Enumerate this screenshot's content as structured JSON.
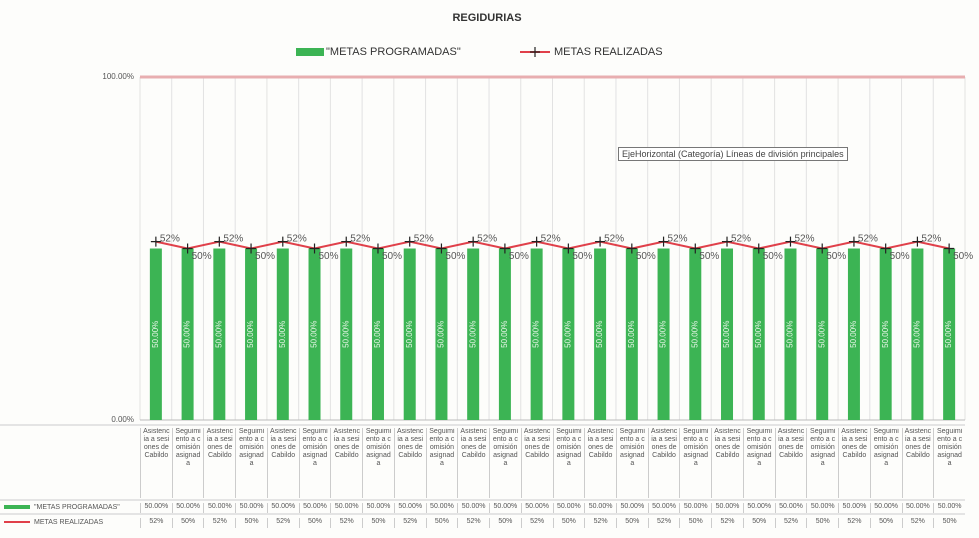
{
  "chart_data": {
    "type": "bar_line",
    "title": "REGIDURIAS",
    "annotation": "EjeHorizontal (Categoría) Líneas de división principales",
    "categories": [
      "Asistencia a sesiones de Cabildo",
      "Seguimiento a comisión asignada",
      "Asistencia a sesiones de Cabildo",
      "Seguimiento a comisión asignada",
      "Asistencia a sesiones de Cabildo",
      "Seguimiento a comisión asignada",
      "Asistencia a sesiones de Cabildo",
      "Seguimiento a comisión asignada",
      "Asistencia a sesiones de Cabildo",
      "Seguimiento a comisión asignada",
      "Asistencia a sesiones de Cabildo",
      "Seguimiento a comisión asignada",
      "Asistencia a sesiones de Cabildo",
      "Seguimiento a comisión asignada",
      "Asistencia a sesiones de Cabildo",
      "Seguimiento a comisión asignada",
      "Asistencia a sesiones de Cabildo",
      "Seguimiento a comisión asignada",
      "Asistencia a sesiones de Cabildo",
      "Seguimiento a comisión asignada",
      "Asistencia a sesiones de Cabildo",
      "Seguimiento a comisión asignada",
      "Asistencia a sesiones de Cabildo",
      "Seguimiento a comisión asignada",
      "Asistencia a sesiones de Cabildo",
      "Seguimiento a comisión asignada"
    ],
    "series": [
      {
        "name": "\"METAS PROGRAMADAS\"",
        "kind": "bar",
        "color": "#3cb454",
        "values": [
          50,
          50,
          50,
          50,
          50,
          50,
          50,
          50,
          50,
          50,
          50,
          50,
          50,
          50,
          50,
          50,
          50,
          50,
          50,
          50,
          50,
          50,
          50,
          50,
          50,
          50
        ],
        "value_labels": [
          "50.00%",
          "50.00%",
          "50.00%",
          "50.00%",
          "50.00%",
          "50.00%",
          "50.00%",
          "50.00%",
          "50.00%",
          "50.00%",
          "50.00%",
          "50.00%",
          "50.00%",
          "50.00%",
          "50.00%",
          "50.00%",
          "50.00%",
          "50.00%",
          "50.00%",
          "50.00%",
          "50.00%",
          "50.00%",
          "50.00%",
          "50.00%",
          "50.00%",
          "50.00%"
        ]
      },
      {
        "name": "METAS REALIZADAS",
        "kind": "line",
        "color": "#e0404a",
        "values": [
          52,
          50,
          52,
          50,
          52,
          50,
          52,
          50,
          52,
          50,
          52,
          50,
          52,
          50,
          52,
          50,
          52,
          50,
          52,
          50,
          52,
          50,
          52,
          50,
          52,
          50
        ],
        "value_labels": [
          "52%",
          "50%",
          "52%",
          "50%",
          "52%",
          "50%",
          "52%",
          "50%",
          "52%",
          "50%",
          "52%",
          "50%",
          "52%",
          "50%",
          "52%",
          "50%",
          "52%",
          "50%",
          "52%",
          "50%",
          "52%",
          "50%",
          "52%",
          "50%",
          "52%",
          "50%"
        ]
      }
    ],
    "ylim": [
      0,
      100
    ],
    "yticks": [
      {
        "value": 0,
        "label": "0.00%"
      },
      {
        "value": 100,
        "label": "100.00%"
      }
    ],
    "grid": true
  }
}
